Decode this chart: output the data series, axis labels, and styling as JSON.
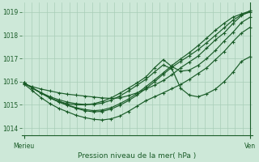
{
  "title": "Pression niveau de la mer( hPa )",
  "xlabel_left": "Merieu",
  "xlabel_right": "Ven",
  "ylim": [
    1013.7,
    1019.4
  ],
  "yticks": [
    1014,
    1015,
    1016,
    1017,
    1018,
    1019
  ],
  "bg_color": "#cde8d8",
  "grid_color": "#a8cdb8",
  "line_color": "#1a5c28",
  "n_vgrid": 30,
  "lines": [
    [
      1015.9,
      1015.78,
      1015.68,
      1015.6,
      1015.52,
      1015.46,
      1015.42,
      1015.38,
      1015.34,
      1015.3,
      1015.28,
      1015.3,
      1015.4,
      1015.52,
      1015.68,
      1015.85,
      1016.05,
      1016.3,
      1016.6,
      1016.85,
      1017.1,
      1017.45,
      1017.8,
      1018.1,
      1018.5,
      1018.85,
      1019.05
    ],
    [
      1015.9,
      1015.6,
      1015.3,
      1015.05,
      1014.85,
      1014.7,
      1014.55,
      1014.45,
      1014.38,
      1014.35,
      1014.4,
      1014.52,
      1014.72,
      1014.95,
      1015.18,
      1015.35,
      1015.52,
      1015.7,
      1015.88,
      1016.1,
      1016.35,
      1016.6,
      1016.95,
      1017.3,
      1017.72,
      1018.1,
      1018.35
    ],
    [
      1015.95,
      1015.72,
      1015.5,
      1015.3,
      1015.15,
      1015.05,
      1015.0,
      1015.0,
      1015.05,
      1015.15,
      1015.3,
      1015.5,
      1015.72,
      1015.95,
      1016.2,
      1016.6,
      1016.95,
      1016.65,
      1016.45,
      1016.5,
      1016.7,
      1017.0,
      1017.35,
      1017.75,
      1018.12,
      1018.55,
      1018.78
    ],
    [
      1015.95,
      1015.72,
      1015.52,
      1015.35,
      1015.22,
      1015.12,
      1015.05,
      1015.02,
      1015.02,
      1015.08,
      1015.2,
      1015.38,
      1015.6,
      1015.85,
      1016.1,
      1016.42,
      1016.72,
      1016.55,
      1015.72,
      1015.42,
      1015.35,
      1015.48,
      1015.68,
      1016.0,
      1016.4,
      1016.88,
      1017.08
    ],
    [
      1015.95,
      1015.72,
      1015.5,
      1015.3,
      1015.12,
      1014.98,
      1014.85,
      1014.75,
      1014.7,
      1014.72,
      1014.82,
      1014.98,
      1015.18,
      1015.42,
      1015.7,
      1016.0,
      1016.32,
      1016.62,
      1016.88,
      1017.12,
      1017.38,
      1017.68,
      1018.0,
      1018.32,
      1018.65,
      1018.88,
      1019.0
    ],
    [
      1015.95,
      1015.72,
      1015.5,
      1015.3,
      1015.15,
      1015.0,
      1014.88,
      1014.8,
      1014.75,
      1014.78,
      1014.88,
      1015.05,
      1015.25,
      1015.5,
      1015.78,
      1016.08,
      1016.38,
      1016.7,
      1016.98,
      1017.25,
      1017.55,
      1017.88,
      1018.22,
      1018.52,
      1018.78,
      1018.92,
      1019.05
    ]
  ]
}
